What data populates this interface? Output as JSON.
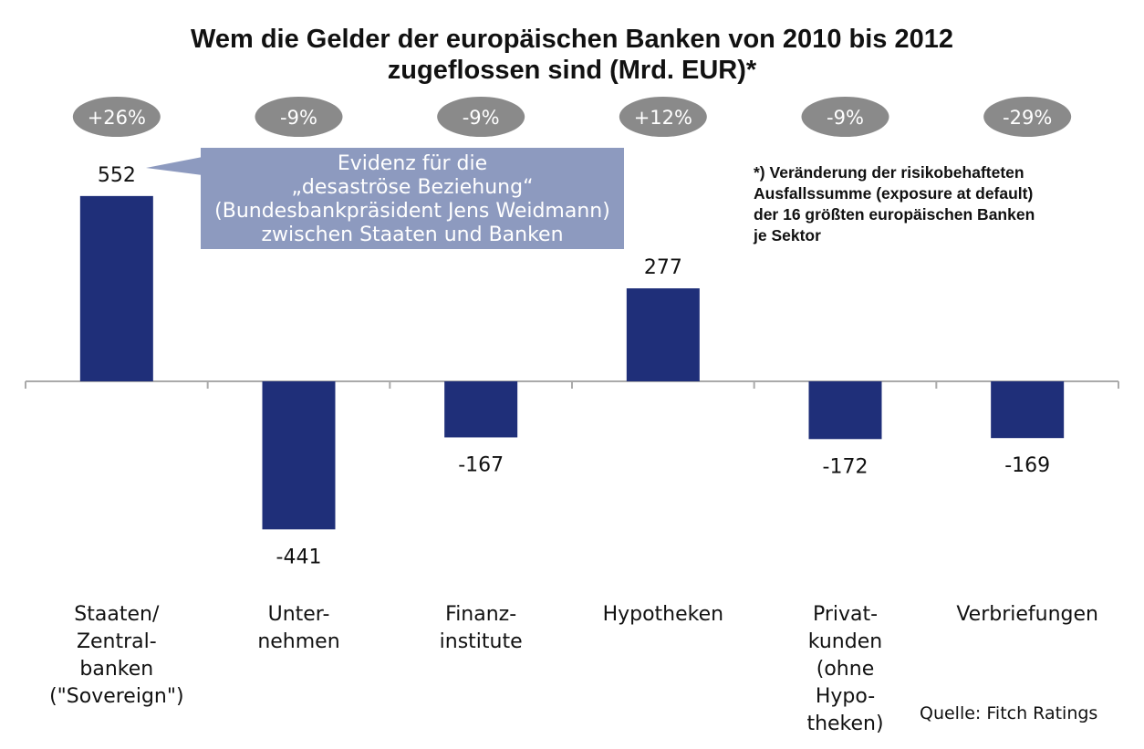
{
  "title_line1": "Wem die Gelder der europäischen Banken von 2010 bis 2012",
  "title_line2": "zugeflossen sind (Mrd. EUR)*",
  "callout": {
    "line1": "Evidenz für die",
    "line2": "„desaströse Beziehung“",
    "line3": "(Bundesbankpräsident Jens Weidmann)",
    "line4": "zwischen Staaten und Banken"
  },
  "footnote": {
    "line1": "*) Veränderung der risikobehafteten",
    "line2": "Ausfallssumme (exposure at default)",
    "line3": "der 16 größten europäischen Banken",
    "line4": "je Sektor"
  },
  "source": "Quelle: Fitch Ratings",
  "colors": {
    "bar": "#1f2f79",
    "badge": "#8a8a8a",
    "callout": "#8d9abf",
    "axis": "#aaaaaa"
  },
  "chart_data": {
    "type": "bar",
    "title": "Wem die Gelder der europäischen Banken von 2010 bis 2012 zugeflossen sind (Mrd. EUR)*",
    "categories": [
      [
        "Staaten/",
        "Zentral-",
        "banken",
        "(\"Sovereign\")"
      ],
      [
        "Unter-",
        "nehmen"
      ],
      [
        "Finanz-",
        "institute"
      ],
      [
        "Hypotheken"
      ],
      [
        "Privat-",
        "kunden",
        "(ohne",
        "Hypo-",
        "theken)"
      ],
      [
        "Verbriefungen"
      ]
    ],
    "values": [
      552,
      -441,
      -167,
      277,
      -172,
      -169
    ],
    "value_labels": [
      "552",
      "-441",
      "-167",
      "277",
      "-172",
      "-169"
    ],
    "pct_changes": [
      "+26%",
      "-9%",
      "-9%",
      "+12%",
      "-9%",
      "-29%"
    ],
    "ylim": [
      -441,
      552
    ],
    "grid": false,
    "legend": "none"
  }
}
